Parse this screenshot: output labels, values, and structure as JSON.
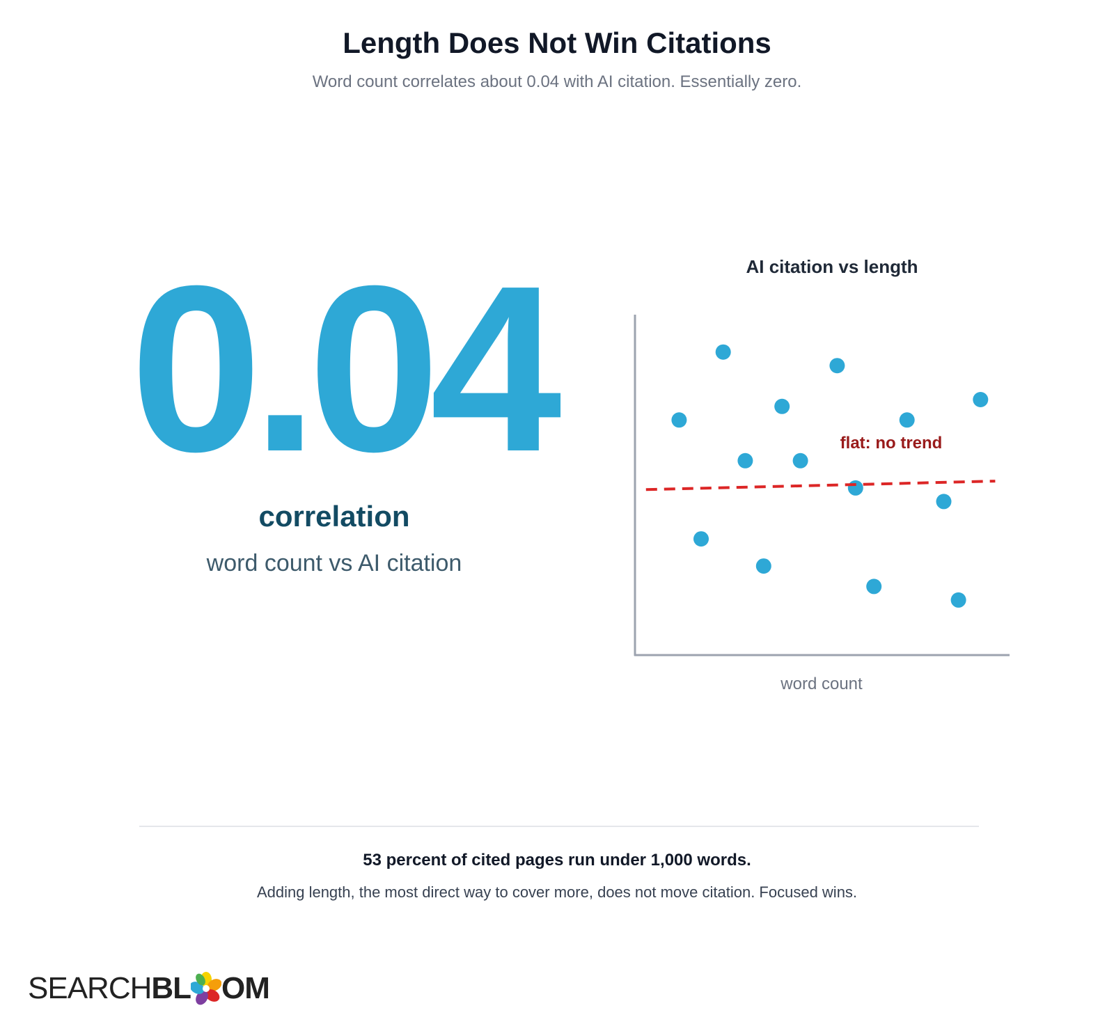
{
  "header": {
    "title": "Length Does Not Win Citations",
    "subtitle": "Word count correlates about 0.04 with AI citation. Essentially zero."
  },
  "stat": {
    "value": "0.04",
    "label": "correlation",
    "sublabel": "word count vs AI citation"
  },
  "chart_data": {
    "type": "scatter",
    "title": "AI citation vs length",
    "xlabel": "word count",
    "ylabel": "",
    "grid": false,
    "points": [
      {
        "x": 0.12,
        "y": 0.69
      },
      {
        "x": 0.24,
        "y": 0.89
      },
      {
        "x": 0.18,
        "y": 0.34
      },
      {
        "x": 0.3,
        "y": 0.57
      },
      {
        "x": 0.4,
        "y": 0.73
      },
      {
        "x": 0.35,
        "y": 0.26
      },
      {
        "x": 0.45,
        "y": 0.57
      },
      {
        "x": 0.55,
        "y": 0.85
      },
      {
        "x": 0.6,
        "y": 0.49
      },
      {
        "x": 0.65,
        "y": 0.2
      },
      {
        "x": 0.74,
        "y": 0.69
      },
      {
        "x": 0.84,
        "y": 0.45
      },
      {
        "x": 0.88,
        "y": 0.16
      },
      {
        "x": 0.94,
        "y": 0.75
      }
    ],
    "trend": {
      "label": "flat: no trend",
      "x": [
        0.03,
        0.98
      ],
      "y": [
        0.485,
        0.51
      ],
      "color": "#dc2626"
    },
    "point_color": "#2ea8d6",
    "label_color": "#991b1b"
  },
  "footer": {
    "headline": "53 percent of cited pages run under 1,000 words.",
    "text": "Adding length, the most direct way to cover more, does not move citation. Focused wins."
  },
  "logo": {
    "text_light": "SEARCH",
    "text_bold_left": "BL",
    "text_bold_right": "OM"
  }
}
